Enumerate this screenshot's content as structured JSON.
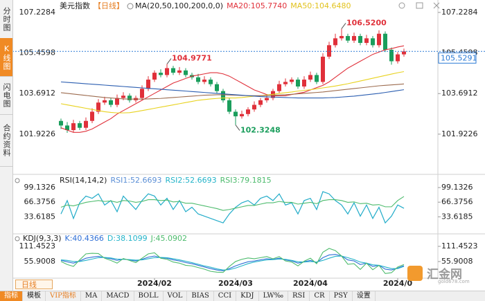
{
  "sidebar": [
    "分时图",
    "K线图",
    "闪电图",
    "合约资料"
  ],
  "period_button": "日线",
  "toolbar": [
    "指标",
    "模板",
    "VIP指标",
    "MA",
    "MACD",
    "BOLL",
    "VOL",
    "BIAS",
    "CCI",
    "KDJ",
    "LW‰",
    "RSI",
    "CR",
    "PSY",
    "设置"
  ],
  "watermark": {
    "name": "汇金网",
    "site": "gold678.com"
  },
  "chart_data": [
    {
      "type": "candlestick",
      "header": [
        {
          "text": "美元指数",
          "color": "#222222"
        },
        {
          "text": "【日线】",
          "color": "#e67e22"
        },
        {
          "text": "MA(20,50,100,200,0,0)",
          "color": "#222222"
        },
        {
          "text": "MA20:105.7740",
          "color": "#e0303a"
        },
        {
          "text": "MA50:104.6480",
          "color": "#e2c21c"
        }
      ],
      "up_color": "#e0303a",
      "down_color": "#1a9e5c",
      "open": [
        102.5,
        102.3,
        102.1,
        102.4,
        102.2,
        102.5,
        102.9,
        103.3,
        103.4,
        103.2,
        103.5,
        103.6,
        103.4,
        103.5,
        103.9,
        104.3,
        104.6,
        104.5,
        104.8,
        104.6,
        104.7,
        104.5,
        104.4,
        104.2,
        104.3,
        104.1,
        103.8,
        103.4,
        102.9,
        102.7,
        102.8,
        103.0,
        103.2,
        103.4,
        103.5,
        103.8,
        104.1,
        104.2,
        104.3,
        104.0,
        104.3,
        104.5,
        104.2,
        105.3,
        105.8,
        106.1,
        106.2,
        106.0,
        106.2,
        105.9,
        106.1,
        105.8,
        106.3,
        105.6,
        105.1,
        105.4
      ],
      "high": [
        102.6,
        102.45,
        102.55,
        102.5,
        102.65,
        103.05,
        103.45,
        103.55,
        103.5,
        103.65,
        103.75,
        103.7,
        103.6,
        104.05,
        104.45,
        104.7,
        104.75,
        104.9771,
        104.9,
        104.85,
        104.8,
        104.6,
        104.55,
        104.45,
        104.4,
        104.2,
        103.9,
        103.5,
        103.0,
        102.95,
        103.1,
        103.35,
        103.5,
        103.65,
        103.9,
        104.25,
        104.35,
        104.4,
        104.4,
        104.45,
        104.65,
        104.6,
        105.45,
        105.95,
        106.3,
        106.52,
        106.3,
        106.35,
        106.3,
        106.25,
        106.2,
        106.45,
        106.4,
        105.7,
        105.5,
        105.65
      ],
      "low": [
        102.15,
        101.98,
        102.0,
        102.1,
        102.1,
        102.4,
        102.8,
        103.2,
        103.1,
        103.1,
        103.4,
        103.3,
        103.3,
        103.4,
        103.8,
        104.2,
        104.4,
        104.4,
        104.5,
        104.5,
        104.4,
        104.3,
        104.1,
        104.1,
        104.0,
        103.7,
        103.3,
        102.8,
        102.3248,
        102.6,
        102.7,
        102.9,
        103.1,
        103.3,
        103.4,
        103.7,
        104.0,
        104.1,
        103.9,
        103.9,
        104.2,
        104.1,
        104.1,
        105.2,
        105.7,
        106.0,
        105.9,
        105.9,
        105.8,
        105.8,
        105.7,
        105.7,
        105.5,
        104.95,
        105.0,
        105.3
      ],
      "close": [
        102.3,
        102.1,
        102.4,
        102.2,
        102.5,
        102.9,
        103.3,
        103.4,
        103.2,
        103.5,
        103.6,
        103.4,
        103.5,
        103.9,
        104.3,
        104.6,
        104.5,
        104.8,
        104.6,
        104.7,
        104.5,
        104.4,
        104.2,
        104.3,
        104.1,
        103.8,
        103.4,
        102.9,
        102.7,
        102.8,
        103.0,
        103.2,
        103.4,
        103.5,
        103.8,
        104.1,
        104.2,
        104.3,
        104.0,
        104.3,
        104.5,
        104.2,
        105.3,
        105.8,
        106.1,
        106.2,
        106.0,
        106.2,
        105.9,
        106.1,
        105.8,
        106.3,
        105.6,
        105.1,
        105.4,
        105.5291
      ],
      "series": [
        {
          "name": "MA20",
          "color": "#e0303a",
          "values": [
            102.2,
            102.1,
            102.0,
            102.0,
            102.05,
            102.15,
            102.3,
            102.45,
            102.6,
            102.8,
            102.95,
            103.1,
            103.25,
            103.4,
            103.55,
            103.7,
            103.85,
            104.0,
            104.15,
            104.25,
            104.35,
            104.45,
            104.5,
            104.55,
            104.6,
            104.6,
            104.55,
            104.45,
            104.3,
            104.15,
            104.0,
            103.85,
            103.75,
            103.65,
            103.6,
            103.6,
            103.6,
            103.65,
            103.7,
            103.75,
            103.85,
            103.95,
            104.05,
            104.2,
            104.4,
            104.6,
            104.8,
            104.95,
            105.1,
            105.25,
            105.4,
            105.5,
            105.6,
            105.65,
            105.72,
            105.774
          ]
        },
        {
          "name": "MA50",
          "color": "#e8d21e",
          "values": [
            103.25,
            103.2,
            103.15,
            103.1,
            103.05,
            103.0,
            102.95,
            102.9,
            102.87,
            102.85,
            102.85,
            102.86,
            102.9,
            102.95,
            103.0,
            103.05,
            103.1,
            103.15,
            103.2,
            103.25,
            103.3,
            103.35,
            103.4,
            103.43,
            103.46,
            103.48,
            103.5,
            103.5,
            103.5,
            103.52,
            103.55,
            103.58,
            103.6,
            103.63,
            103.66,
            103.7,
            103.73,
            103.76,
            103.8,
            103.83,
            103.86,
            103.9,
            103.94,
            103.98,
            104.02,
            104.07,
            104.12,
            104.18,
            104.24,
            104.3,
            104.36,
            104.42,
            104.48,
            104.54,
            104.6,
            104.648
          ]
        },
        {
          "name": "MA100",
          "color": "#9c6b4e",
          "values": [
            103.73,
            103.7,
            103.67,
            103.64,
            103.61,
            103.58,
            103.55,
            103.52,
            103.5,
            103.48,
            103.46,
            103.45,
            103.45,
            103.45,
            103.46,
            103.47,
            103.48,
            103.5,
            103.52,
            103.54,
            103.56,
            103.58,
            103.6,
            103.62,
            103.63,
            103.64,
            103.64,
            103.63,
            103.62,
            103.61,
            103.6,
            103.6,
            103.6,
            103.61,
            103.62,
            103.63,
            103.64,
            103.66,
            103.68,
            103.7,
            103.72,
            103.74,
            103.76,
            103.79,
            103.82,
            103.85,
            103.88,
            103.91,
            103.94,
            103.97,
            104.0,
            104.03,
            104.05,
            104.07,
            104.09,
            104.11
          ]
        },
        {
          "name": "MA200",
          "color": "#2a5db0",
          "values": [
            104.2,
            104.18,
            104.16,
            104.14,
            104.12,
            104.1,
            104.08,
            104.06,
            104.04,
            104.02,
            104.0,
            103.98,
            103.96,
            103.94,
            103.92,
            103.9,
            103.88,
            103.86,
            103.84,
            103.82,
            103.8,
            103.78,
            103.76,
            103.74,
            103.72,
            103.7,
            103.68,
            103.66,
            103.64,
            103.62,
            103.6,
            103.58,
            103.56,
            103.55,
            103.54,
            103.53,
            103.52,
            103.51,
            103.5,
            103.5,
            103.5,
            103.5,
            103.5,
            103.51,
            103.52,
            103.54,
            103.56,
            103.58,
            103.61,
            103.64,
            103.67,
            103.7,
            103.74,
            103.78,
            103.82,
            103.86
          ]
        }
      ],
      "annotations": [
        {
          "text": "104.9771",
          "candle": 17,
          "anchor": "high",
          "color": "#e0303a"
        },
        {
          "text": "106.5200",
          "candle": 45,
          "anchor": "high",
          "color": "#e0303a"
        },
        {
          "text": "102.3248",
          "candle": 28,
          "anchor": "low",
          "color": "#1a9e5c"
        }
      ],
      "last_label": "105.5291",
      "ylim": [
        100.23,
        107.77
      ],
      "yticks": [
        101.9226,
        103.6912,
        105.4598,
        107.2284
      ]
    },
    {
      "type": "line",
      "header": [
        {
          "text": "RSI(14,14,2)",
          "color": "#222222"
        },
        {
          "text": "RSI1:52.6693",
          "color": "#5b8fd6"
        },
        {
          "text": "RSI2:52.6693",
          "color": "#23b3c9"
        },
        {
          "text": "RSI3:79.1815",
          "color": "#4cbb6c"
        }
      ],
      "series": [
        {
          "name": "RSI1",
          "color": "#5b8fd6",
          "values": [
            40,
            70,
            30,
            65,
            80,
            75,
            85,
            60,
            70,
            45,
            80,
            65,
            50,
            70,
            85,
            80,
            60,
            75,
            50,
            70,
            45,
            55,
            40,
            35,
            30,
            25,
            20,
            40,
            55,
            65,
            70,
            60,
            75,
            80,
            70,
            85,
            60,
            65,
            40,
            70,
            75,
            50,
            90,
            85,
            70,
            60,
            40,
            65,
            35,
            60,
            30,
            55,
            20,
            35,
            60,
            52.6693
          ]
        },
        {
          "name": "RSI2",
          "color": "#23b3c9",
          "values": [
            40,
            70,
            30,
            65,
            80,
            75,
            85,
            60,
            70,
            45,
            80,
            65,
            50,
            70,
            85,
            80,
            60,
            75,
            50,
            70,
            45,
            55,
            40,
            35,
            30,
            25,
            20,
            40,
            55,
            65,
            70,
            60,
            75,
            80,
            70,
            85,
            60,
            65,
            40,
            70,
            75,
            50,
            90,
            85,
            70,
            60,
            40,
            65,
            35,
            60,
            30,
            55,
            20,
            35,
            60,
            52.6693
          ]
        },
        {
          "name": "RSI3",
          "color": "#4cbb6c",
          "values": [
            55,
            60,
            58,
            62,
            66,
            68,
            70,
            68,
            69,
            66,
            70,
            69,
            66,
            68,
            72,
            72,
            70,
            71,
            67,
            68,
            64,
            64,
            61,
            58,
            55,
            52,
            48,
            50,
            53,
            56,
            59,
            59,
            62,
            65,
            65,
            68,
            66,
            66,
            62,
            64,
            66,
            63,
            70,
            72,
            72,
            70,
            66,
            67,
            63,
            64,
            60,
            61,
            56,
            56,
            70,
            79.1815
          ]
        }
      ],
      "ylim": [
        0,
        124
      ],
      "yticks": [
        33.6185,
        66.3756,
        99.1326
      ]
    },
    {
      "type": "line",
      "header": [
        {
          "text": "KDJ(9,3,3)",
          "color": "#222222"
        },
        {
          "text": "K:40.4366",
          "color": "#2f6fd6"
        },
        {
          "text": "D:38.1099",
          "color": "#23b3c9"
        },
        {
          "text": "J:45.0902",
          "color": "#4cbb6c"
        }
      ],
      "series": [
        {
          "name": "K",
          "color": "#2f6fd6",
          "values": [
            60,
            55,
            50,
            58,
            68,
            72,
            75,
            70,
            66,
            60,
            65,
            62,
            58,
            64,
            72,
            76,
            70,
            68,
            62,
            58,
            52,
            48,
            42,
            36,
            30,
            25,
            22,
            30,
            40,
            48,
            55,
            58,
            62,
            66,
            64,
            68,
            62,
            58,
            50,
            55,
            60,
            52,
            70,
            80,
            82,
            76,
            62,
            58,
            45,
            50,
            38,
            42,
            28,
            25,
            32,
            40.4366
          ]
        },
        {
          "name": "D",
          "color": "#23b3c9",
          "values": [
            62,
            60,
            56,
            56,
            60,
            65,
            70,
            71,
            69,
            65,
            64,
            63,
            61,
            62,
            66,
            70,
            71,
            70,
            66,
            62,
            57,
            52,
            46,
            40,
            35,
            29,
            25,
            26,
            32,
            40,
            48,
            54,
            58,
            62,
            63,
            65,
            64,
            60,
            55,
            54,
            56,
            54,
            60,
            68,
            75,
            76,
            70,
            63,
            54,
            50,
            44,
            42,
            36,
            30,
            30,
            38.1099
          ]
        },
        {
          "name": "J",
          "color": "#4cbb6c",
          "values": [
            56,
            45,
            38,
            62,
            84,
            86,
            85,
            68,
            60,
            50,
            67,
            60,
            52,
            68,
            84,
            88,
            68,
            64,
            54,
            50,
            42,
            40,
            34,
            28,
            20,
            17,
            16,
            38,
            56,
            64,
            69,
            66,
            70,
            74,
            66,
            74,
            58,
            54,
            40,
            57,
            68,
            48,
            90,
            104,
            96,
            76,
            46,
            48,
            27,
            50,
            26,
            42,
            12,
            15,
            36,
            45.0902
          ]
        }
      ],
      "ylim": [
        -5,
        147
      ],
      "yticks": [
        55.9008,
        111.4523
      ],
      "xticks": [
        {
          "value": 15,
          "label": "2024/02"
        },
        {
          "value": 28,
          "label": "2024/03"
        },
        {
          "value": 40,
          "label": "2024/04"
        },
        {
          "value": 54,
          "label": "2024/0"
        }
      ]
    }
  ]
}
